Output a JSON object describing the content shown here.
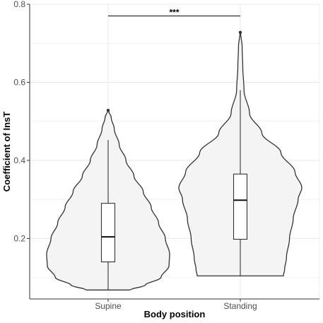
{
  "chart_data": {
    "type": "violin",
    "xlabel": "Body position",
    "ylabel": "Coefficient of InsT",
    "categories": [
      "Supine",
      "Standing"
    ],
    "ylim": [
      0.045,
      0.8
    ],
    "yticks": [
      0.2,
      0.4,
      0.6,
      0.8
    ],
    "grid": true,
    "legend": "none",
    "colors": {
      "fill": "#f4f4f4",
      "stroke": "#333333",
      "grid": "#ebebeb",
      "axis": "#333333"
    },
    "violins": [
      {
        "category": "Supine",
        "profile": [
          [
            0.068,
            0.35
          ],
          [
            0.08,
            0.6
          ],
          [
            0.1,
            0.86
          ],
          [
            0.13,
            0.99
          ],
          [
            0.16,
            1.0
          ],
          [
            0.2,
            0.93
          ],
          [
            0.24,
            0.82
          ],
          [
            0.28,
            0.7
          ],
          [
            0.32,
            0.57
          ],
          [
            0.36,
            0.42
          ],
          [
            0.4,
            0.29
          ],
          [
            0.44,
            0.18
          ],
          [
            0.48,
            0.1
          ],
          [
            0.51,
            0.05
          ],
          [
            0.528,
            0.005
          ]
        ],
        "box": {
          "q1": 0.14,
          "median": 0.204,
          "q3": 0.29,
          "whisker_low": 0.068,
          "whisker_high": 0.452
        },
        "outliers": [
          0.528
        ]
      },
      {
        "category": "Standing",
        "profile": [
          [
            0.104,
            0.7
          ],
          [
            0.12,
            0.72
          ],
          [
            0.15,
            0.75
          ],
          [
            0.2,
            0.8
          ],
          [
            0.25,
            0.86
          ],
          [
            0.3,
            0.94
          ],
          [
            0.33,
            1.0
          ],
          [
            0.37,
            0.89
          ],
          [
            0.42,
            0.66
          ],
          [
            0.47,
            0.35
          ],
          [
            0.52,
            0.15
          ],
          [
            0.58,
            0.06
          ],
          [
            0.64,
            0.04
          ],
          [
            0.69,
            0.03
          ],
          [
            0.728,
            0.005
          ]
        ],
        "box": {
          "q1": 0.198,
          "median": 0.298,
          "q3": 0.365,
          "whisker_low": 0.104,
          "whisker_high": 0.58
        },
        "outliers": [
          0.728
        ]
      }
    ],
    "annotations": [
      {
        "type": "significance",
        "from": "Supine",
        "to": "Standing",
        "y": 0.77,
        "label": "***"
      }
    ]
  }
}
